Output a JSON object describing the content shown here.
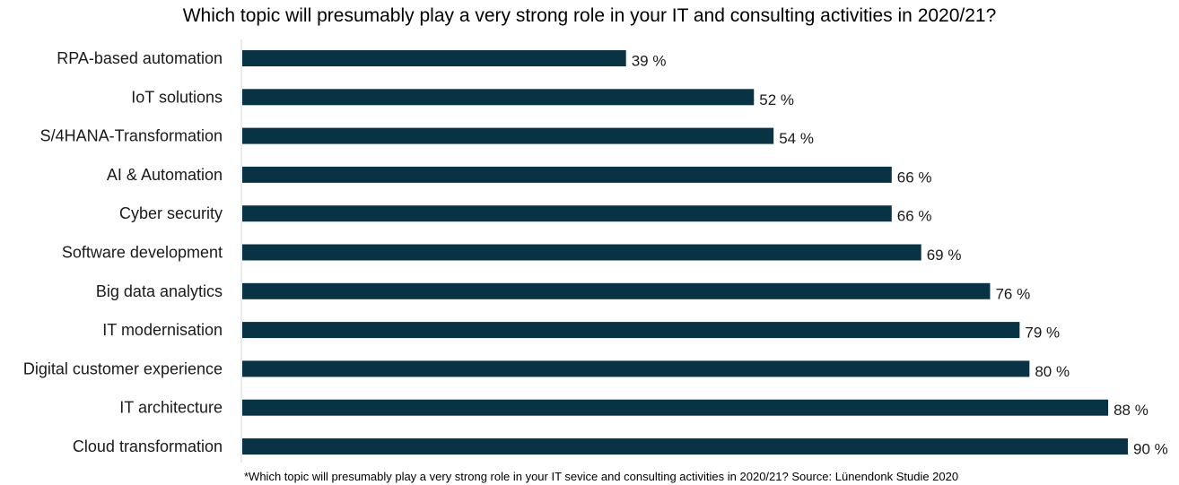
{
  "chart_data": {
    "type": "bar",
    "orientation": "horizontal",
    "title": "Which topic will presumably play a very strong role in your IT and consulting activities in 2020/21?",
    "categories": [
      "RPA-based automation",
      "IoT solutions",
      "S/4HANA-Transformation",
      "AI & Automation",
      "Cyber security",
      "Software development",
      "Big data analytics",
      "IT modernisation",
      "Digital customer experience",
      "IT architecture",
      "Cloud transformation"
    ],
    "values": [
      39,
      52,
      54,
      66,
      66,
      69,
      76,
      79,
      80,
      88,
      90
    ],
    "value_labels": [
      "39 %",
      "52 %",
      "54 %",
      "66 %",
      "66 %",
      "69 %",
      "76 %",
      "79 %",
      "80 %",
      "88 %",
      "90 %"
    ],
    "xlim": [
      0,
      90
    ],
    "grid": false,
    "bar_color": "#083344",
    "footnote": "*Which topic will presumably play a very strong role in your IT sevice and consulting activities in 2020/21? Source: Lünendonk Studie 2020"
  }
}
